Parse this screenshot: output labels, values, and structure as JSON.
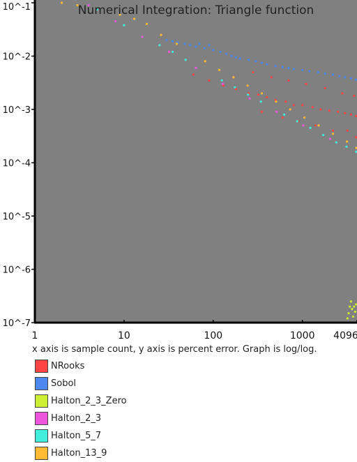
{
  "chart_data": {
    "type": "scatter",
    "title": "Numerical Integration: Triangle function",
    "xscale": "log",
    "yscale": "log",
    "xlim": [
      1,
      4096
    ],
    "ylim": [
      1e-07,
      0.1
    ],
    "x_ticks": [
      1,
      10,
      100,
      1000,
      4096
    ],
    "x_tick_labels": [
      "1",
      "10",
      "100",
      "1000",
      "4096"
    ],
    "y_ticks": [
      0.1,
      0.01,
      0.001,
      0.0001,
      1e-05,
      1e-06,
      1e-07
    ],
    "y_tick_labels": [
      "10^-1",
      "10^-2",
      "10^-3",
      "10^-4",
      "10^-5",
      "10^-6",
      "10^-7"
    ],
    "plot_background": "#808080",
    "grid": false,
    "legend_position": "bottom-left",
    "series": [
      {
        "name": "NRooks",
        "color": "#ff4444",
        "points": [
          [
            60,
            0.0045
          ],
          [
            90,
            0.0035
          ],
          [
            130,
            0.0028
          ],
          [
            180,
            0.0024
          ],
          [
            250,
            0.002
          ],
          [
            320,
            0.0019
          ],
          [
            400,
            0.0017
          ],
          [
            500,
            0.0015
          ],
          [
            650,
            0.0014
          ],
          [
            800,
            0.0012
          ],
          [
            1000,
            0.0012
          ],
          [
            1300,
            0.0011
          ],
          [
            1600,
            0.001
          ],
          [
            2000,
            0.00095
          ],
          [
            2500,
            0.0009
          ],
          [
            3000,
            0.00085
          ],
          [
            3500,
            0.0008
          ],
          [
            4000,
            0.00075
          ],
          [
            280,
            0.005
          ],
          [
            450,
            0.004
          ],
          [
            700,
            0.0035
          ],
          [
            1100,
            0.003
          ],
          [
            1800,
            0.0025
          ],
          [
            2800,
            0.002
          ],
          [
            3800,
            0.0018
          ],
          [
            350,
            0.0009
          ],
          [
            600,
            0.0007
          ],
          [
            900,
            0.0006
          ],
          [
            1400,
            0.0005
          ],
          [
            2200,
            0.0004
          ],
          [
            3200,
            0.0004
          ],
          [
            4000,
            0.0003
          ]
        ]
      },
      {
        "name": "Sobol",
        "color": "#4d88ee",
        "points": [
          [
            30,
            0.02
          ],
          [
            35,
            0.019
          ],
          [
            40,
            0.018
          ],
          [
            48,
            0.017
          ],
          [
            55,
            0.016
          ],
          [
            64,
            0.015
          ],
          [
            70,
            0.017
          ],
          [
            80,
            0.014
          ],
          [
            90,
            0.016
          ],
          [
            100,
            0.013
          ],
          [
            120,
            0.012
          ],
          [
            140,
            0.011
          ],
          [
            160,
            0.01
          ],
          [
            180,
            0.0095
          ],
          [
            200,
            0.009
          ],
          [
            250,
            0.0085
          ],
          [
            300,
            0.008
          ],
          [
            350,
            0.0075
          ],
          [
            400,
            0.007
          ],
          [
            500,
            0.0065
          ],
          [
            600,
            0.0062
          ],
          [
            700,
            0.006
          ],
          [
            800,
            0.0057
          ],
          [
            1000,
            0.0055
          ],
          [
            1200,
            0.0052
          ],
          [
            1500,
            0.005
          ],
          [
            1800,
            0.0047
          ],
          [
            2200,
            0.0045
          ],
          [
            2600,
            0.0042
          ],
          [
            3000,
            0.004
          ],
          [
            3500,
            0.0038
          ],
          [
            4000,
            0.0036
          ]
        ]
      },
      {
        "name": "Halton_2_3_Zero",
        "color": "#ccee33",
        "points": [
          [
            3200,
            1.2e-07
          ],
          [
            3300,
            1.5e-07
          ],
          [
            3400,
            2e-07
          ],
          [
            3500,
            2.5e-07
          ],
          [
            3600,
            1.8e-07
          ],
          [
            3700,
            1.3e-07
          ],
          [
            3800,
            2e-07
          ],
          [
            3900,
            1.6e-07
          ],
          [
            4000,
            2.2e-07
          ]
        ]
      },
      {
        "name": "Halton_2_3",
        "color": "#ee55dd",
        "points": [
          [
            4,
            0.09
          ],
          [
            8,
            0.045
          ],
          [
            16,
            0.023
          ],
          [
            32,
            0.012
          ],
          [
            64,
            0.006
          ],
          [
            128,
            0.003
          ],
          [
            256,
            0.0016
          ],
          [
            512,
            0.0009
          ],
          [
            1024,
            0.0005
          ],
          [
            2048,
            0.00028
          ],
          [
            4096,
            0.00016
          ]
        ]
      },
      {
        "name": "Halton_5_7",
        "color": "#44eedd",
        "points": [
          [
            5,
            0.075
          ],
          [
            10,
            0.038
          ],
          [
            25,
            0.016
          ],
          [
            35,
            0.012
          ],
          [
            49,
            0.0085
          ],
          [
            125,
            0.0035
          ],
          [
            175,
            0.0026
          ],
          [
            245,
            0.0019
          ],
          [
            343,
            0.0014
          ],
          [
            625,
            0.0008
          ],
          [
            875,
            0.0006
          ],
          [
            1225,
            0.00045
          ],
          [
            1715,
            0.00033
          ],
          [
            2401,
            0.00024
          ],
          [
            3125,
            0.0002
          ],
          [
            4000,
            0.00016
          ]
        ]
      },
      {
        "name": "Halton_13_9",
        "color": "#ffbb33",
        "points": [
          [
            2,
            0.1
          ],
          [
            3,
            0.09
          ],
          [
            9,
            0.06
          ],
          [
            13,
            0.05
          ],
          [
            18,
            0.04
          ],
          [
            26,
            0.025
          ],
          [
            39,
            0.017
          ],
          [
            81,
            0.008
          ],
          [
            117,
            0.0055
          ],
          [
            169,
            0.004
          ],
          [
            243,
            0.0028
          ],
          [
            351,
            0.002
          ],
          [
            507,
            0.0014
          ],
          [
            729,
            0.001
          ],
          [
            1053,
            0.0007
          ],
          [
            1521,
            0.0005
          ],
          [
            2197,
            0.00035
          ],
          [
            3159,
            0.00025
          ],
          [
            4096,
            0.00019
          ]
        ]
      }
    ],
    "caption": "x axis is sample count, y axis is percent error. Graph is log/log."
  }
}
